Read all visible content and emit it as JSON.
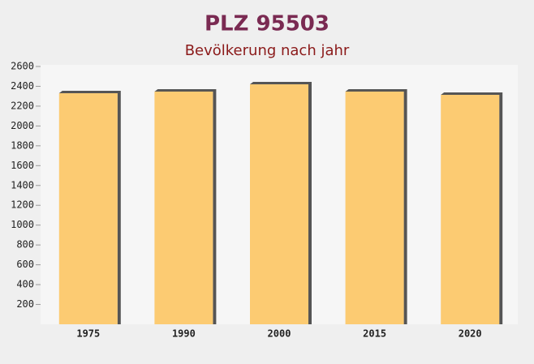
{
  "chart_data": {
    "type": "bar",
    "title": "PLZ 95503",
    "subtitle": "Bevölkerung nach jahr",
    "categories": [
      "1975",
      "1990",
      "2000",
      "2015",
      "2020"
    ],
    "values": [
      2330,
      2347,
      2420,
      2347,
      2314
    ],
    "color": "#fdc35a",
    "ylim": [
      0,
      2600
    ],
    "yticks": [
      200,
      400,
      600,
      800,
      1000,
      1200,
      1400,
      1600,
      1800,
      2000,
      2200,
      2400,
      2600
    ],
    "grid": false
  }
}
